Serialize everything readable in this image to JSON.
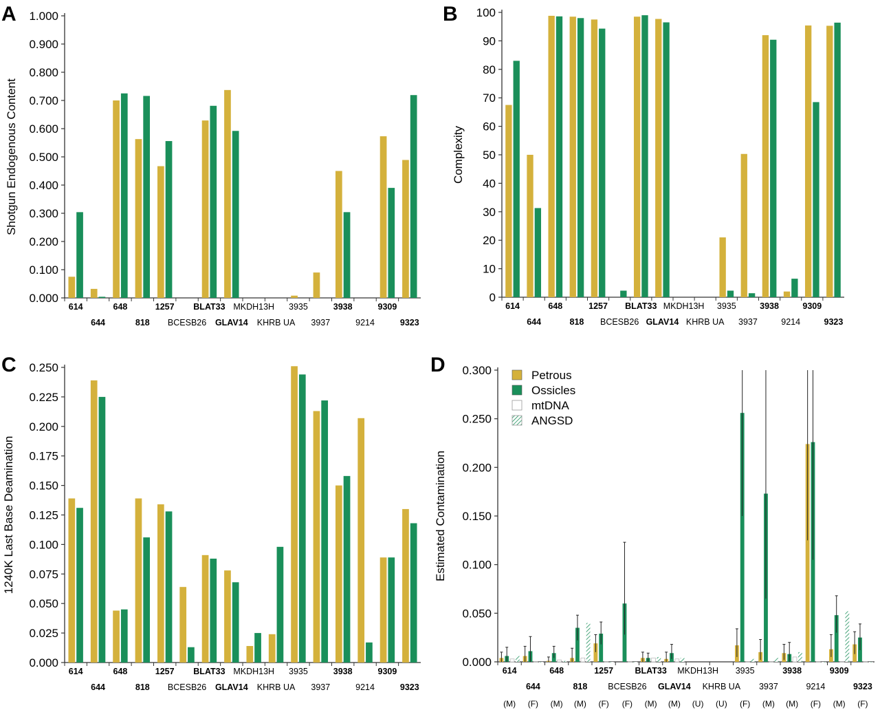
{
  "colors": {
    "petrous": "#d4b13c",
    "ossicles": "#1a8f5a",
    "axis": "#333333",
    "errorbar": "#222222"
  },
  "legend": {
    "items": [
      {
        "label": "Petrous",
        "style": "petrous"
      },
      {
        "label": "Ossicles",
        "style": "ossicles"
      },
      {
        "label": "mtDNA",
        "style": "hollow"
      },
      {
        "label": "ANGSD",
        "style": "hatched"
      }
    ]
  },
  "chart_data": [
    {
      "panel": "A",
      "type": "bar",
      "ylabel": "Shotgun Endogenous Content",
      "ylim": [
        0,
        1.0
      ],
      "yticks": [
        "0.000",
        "0.100",
        "0.200",
        "0.300",
        "0.400",
        "0.500",
        "0.600",
        "0.700",
        "0.800",
        "0.900",
        "1.000"
      ],
      "categories": [
        "614",
        "644",
        "648",
        "818",
        "1257",
        "BCESB26",
        "BLAT33",
        "GLAV14",
        "MKDH13H",
        "KHRB UA",
        "3935",
        "3937",
        "3938",
        "9214",
        "9309",
        "9323"
      ],
      "bold_categories": [
        "614",
        "644",
        "648",
        "818",
        "1257",
        "BLAT33",
        "GLAV14",
        "3938",
        "9309",
        "9323"
      ],
      "series": [
        {
          "name": "Petrous",
          "values": [
            0.075,
            0.032,
            0.7,
            0.563,
            0.467,
            null,
            0.629,
            0.737,
            null,
            null,
            0.008,
            0.09,
            0.45,
            null,
            0.573,
            0.489
          ]
        },
        {
          "name": "Ossicles",
          "values": [
            0.304,
            0.004,
            0.725,
            0.716,
            0.556,
            null,
            0.681,
            0.592,
            null,
            null,
            null,
            null,
            0.304,
            null,
            0.39,
            0.719
          ]
        }
      ]
    },
    {
      "panel": "B",
      "type": "bar",
      "ylabel": "Complexity",
      "ylim": [
        0,
        100
      ],
      "yticks": [
        "0",
        "10",
        "20",
        "30",
        "40",
        "50",
        "60",
        "70",
        "80",
        "90",
        "100"
      ],
      "categories": [
        "614",
        "644",
        "648",
        "818",
        "1257",
        "BCESB26",
        "BLAT33",
        "GLAV14",
        "MKDH13H",
        "KHRB UA",
        "3935",
        "3937",
        "3938",
        "9214",
        "9309",
        "9323"
      ],
      "bold_categories": [
        "614",
        "644",
        "648",
        "818",
        "1257",
        "BLAT33",
        "GLAV14",
        "3938",
        "9309",
        "9323"
      ],
      "series": [
        {
          "name": "Petrous",
          "values": [
            67.5,
            50,
            98.8,
            98.5,
            97.5,
            null,
            98.5,
            97.7,
            null,
            null,
            21,
            50.3,
            92,
            2,
            95.4,
            95.3
          ]
        },
        {
          "name": "Ossicles",
          "values": [
            83,
            31.3,
            98.6,
            98,
            94.3,
            2.3,
            99,
            96.5,
            null,
            null,
            2.3,
            1.4,
            90.4,
            6.5,
            68.5,
            96.4
          ]
        }
      ]
    },
    {
      "panel": "C",
      "type": "bar",
      "ylabel": "1240K Last Base Deamination",
      "ylim": [
        0,
        0.25
      ],
      "yticks": [
        "0.000",
        "0.025",
        "0.050",
        "0.075",
        "0.100",
        "0.125",
        "0.150",
        "0.175",
        "0.200",
        "0.225",
        "0.250"
      ],
      "categories": [
        "614",
        "644",
        "648",
        "818",
        "1257",
        "BCESB26",
        "BLAT33",
        "GLAV14",
        "MKDH13H",
        "KHRB UA",
        "3935",
        "3937",
        "3938",
        "9214",
        "9309",
        "9323"
      ],
      "bold_categories": [
        "614",
        "644",
        "648",
        "818",
        "1257",
        "BLAT33",
        "GLAV14",
        "3938",
        "9309",
        "9323"
      ],
      "series": [
        {
          "name": "Petrous",
          "values": [
            0.139,
            0.239,
            0.044,
            0.139,
            0.134,
            0.064,
            0.091,
            0.078,
            0.014,
            0.024,
            0.251,
            0.213,
            0.15,
            0.207,
            0.089,
            0.13
          ]
        },
        {
          "name": "Ossicles",
          "values": [
            0.131,
            0.225,
            0.045,
            0.106,
            0.128,
            0.013,
            0.088,
            0.068,
            0.025,
            0.098,
            0.244,
            0.222,
            0.158,
            0.017,
            0.089,
            0.118
          ]
        }
      ]
    },
    {
      "panel": "D",
      "type": "bar",
      "ylabel": "Estimated Contamination",
      "ylim": [
        0,
        0.3
      ],
      "yticks": [
        "0.000",
        "0.050",
        "0.100",
        "0.150",
        "0.200",
        "0.250",
        "0.300"
      ],
      "categories": [
        "614",
        "644",
        "648",
        "818",
        "1257",
        "BCESB26",
        "BLAT33",
        "GLAV14",
        "MKDH13H",
        "KHRB UA",
        "3935",
        "3937",
        "3938",
        "9214",
        "9309",
        "9323"
      ],
      "bold_categories": [
        "614",
        "644",
        "648",
        "818",
        "1257",
        "BLAT33",
        "GLAV14",
        "3938",
        "9309",
        "9323"
      ],
      "sex": [
        "(M)",
        "(F)",
        "(M)",
        "(M)",
        "(F)",
        "(F)",
        "(M)",
        "(M)",
        "(U)",
        "(U)",
        "(F)",
        "(M)",
        "(M)",
        "(F)",
        "(M)",
        "(F)"
      ],
      "series": [
        {
          "name": "Petrous",
          "style": "petrous",
          "values": [
            0.004,
            0.006,
            0.001,
            0.004,
            0.019,
            null,
            0.004,
            0.003,
            null,
            null,
            0.017,
            0.01,
            0.009,
            0.224,
            0.013,
            0.018
          ],
          "err_low": [
            0.0,
            0.0,
            0.0,
            0.0,
            0.01,
            null,
            0.0,
            0.0,
            null,
            null,
            0.005,
            0.002,
            0.002,
            0.125,
            0.005,
            0.008
          ],
          "err_high": [
            0.01,
            0.016,
            0.005,
            0.014,
            0.028,
            null,
            0.01,
            0.01,
            null,
            null,
            0.034,
            0.023,
            0.018,
            0.3,
            0.028,
            0.031
          ]
        },
        {
          "name": "Ossicles",
          "style": "ossicles",
          "values": [
            0.006,
            0.011,
            0.009,
            0.035,
            0.029,
            0.06,
            0.004,
            0.009,
            null,
            null,
            0.256,
            0.173,
            0.008,
            0.226,
            0.048,
            0.025
          ],
          "err_low": [
            0.0,
            0.0,
            0.004,
            0.022,
            0.018,
            0.028,
            0.0,
            0.003,
            null,
            null,
            0.15,
            0.065,
            0.0,
            0.105,
            0.03,
            0.012
          ],
          "err_high": [
            0.015,
            0.026,
            0.016,
            0.048,
            0.041,
            0.123,
            0.009,
            0.018,
            null,
            null,
            0.3,
            0.3,
            0.02,
            0.3,
            0.068,
            0.039
          ]
        },
        {
          "name": "mtDNA",
          "style": "hollow",
          "values": [
            0.003,
            0.0,
            0.002,
            0.004,
            0.0,
            0.0,
            0.004,
            0.003,
            null,
            null,
            0.0,
            0.0,
            0.005,
            0.0,
            0.0,
            0.0
          ]
        },
        {
          "name": "ANGSD",
          "style": "hatched",
          "values": [
            0.006,
            0.0,
            0.001,
            0.04,
            0.0,
            0.0,
            0.005,
            0.004,
            null,
            null,
            0.003,
            0.004,
            0.01,
            0.0,
            0.052,
            0.0
          ]
        }
      ]
    }
  ]
}
